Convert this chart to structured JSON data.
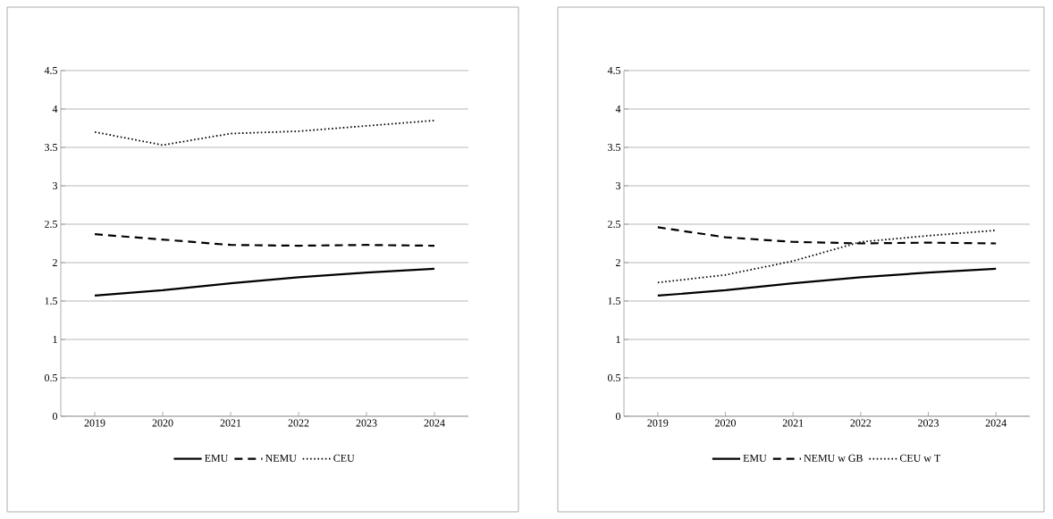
{
  "chart_data": [
    {
      "type": "line",
      "categories": [
        "2019",
        "2020",
        "2021",
        "2022",
        "2023",
        "2024"
      ],
      "ylim": [
        0,
        4.5
      ],
      "yticks": [
        0,
        0.5,
        1,
        1.5,
        2,
        2.5,
        3,
        3.5,
        4,
        4.5
      ],
      "grid": "y",
      "legend": "bottom",
      "series": [
        {
          "name": "EMU",
          "color": "#000000",
          "line_style": "solid",
          "values": [
            1.57,
            1.64,
            1.73,
            1.81,
            1.87,
            1.92
          ]
        },
        {
          "name": "NEMU",
          "color": "#000000",
          "line_style": "dashed",
          "values": [
            2.37,
            2.3,
            2.23,
            2.22,
            2.23,
            2.22
          ]
        },
        {
          "name": "CEU",
          "color": "#000000",
          "line_style": "dotted",
          "values": [
            3.7,
            3.53,
            3.68,
            3.71,
            3.78,
            3.85
          ]
        }
      ]
    },
    {
      "type": "line",
      "categories": [
        "2019",
        "2020",
        "2021",
        "2022",
        "2023",
        "2024"
      ],
      "ylim": [
        0,
        4.5
      ],
      "yticks": [
        0,
        0.5,
        1,
        1.5,
        2,
        2.5,
        3,
        3.5,
        4,
        4.5
      ],
      "grid": "y",
      "legend": "bottom",
      "series": [
        {
          "name": "EMU",
          "color": "#000000",
          "line_style": "solid",
          "values": [
            1.57,
            1.64,
            1.73,
            1.81,
            1.87,
            1.92
          ]
        },
        {
          "name": "NEMU w GB",
          "color": "#000000",
          "line_style": "dashed",
          "values": [
            2.46,
            2.33,
            2.27,
            2.25,
            2.26,
            2.25
          ]
        },
        {
          "name": "CEU w T",
          "color": "#000000",
          "line_style": "dotted",
          "values": [
            1.74,
            1.84,
            2.02,
            2.27,
            2.35,
            2.42
          ]
        }
      ]
    }
  ]
}
